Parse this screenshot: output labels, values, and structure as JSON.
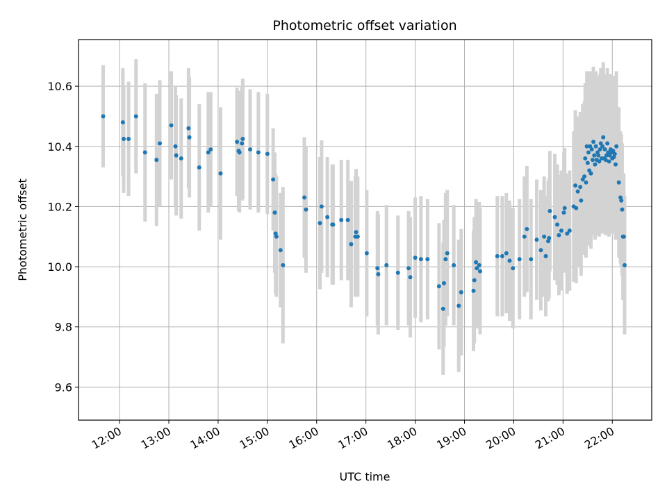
{
  "chart_data": {
    "type": "scatter",
    "title": "Photometric offset variation",
    "xlabel": "UTC time",
    "ylabel": "Photometric offset",
    "x_ticks": [
      "12:00",
      "13:00",
      "14:00",
      "15:00",
      "16:00",
      "17:00",
      "18:00",
      "19:00",
      "20:00",
      "21:00",
      "22:00"
    ],
    "y_ticks": [
      "9.6",
      "9.8",
      "10.0",
      "10.2",
      "10.4",
      "10.6"
    ],
    "xlim": [
      "11:10",
      "22:48"
    ],
    "ylim": [
      9.49,
      10.755
    ],
    "grid": true,
    "marker_color": "#1f77b4",
    "errorbar_color": "#d3d3d3",
    "points_format": [
      "time",
      "offset",
      "error"
    ],
    "points": [
      [
        "11:40",
        10.5,
        0.17
      ],
      [
        "12:04",
        10.48,
        0.18
      ],
      [
        "12:05",
        10.425,
        0.18
      ],
      [
        "12:11",
        10.425,
        0.19
      ],
      [
        "12:20",
        10.5,
        0.19
      ],
      [
        "12:31",
        10.38,
        0.23
      ],
      [
        "12:45",
        10.355,
        0.22
      ],
      [
        "12:49",
        10.41,
        0.21
      ],
      [
        "13:03",
        10.47,
        0.18
      ],
      [
        "13:08",
        10.4,
        0.2
      ],
      [
        "13:09",
        10.37,
        0.2
      ],
      [
        "13:15",
        10.36,
        0.2
      ],
      [
        "13:24",
        10.46,
        0.2
      ],
      [
        "13:25",
        10.43,
        0.2
      ],
      [
        "13:37",
        10.33,
        0.21
      ],
      [
        "13:48",
        10.38,
        0.2
      ],
      [
        "13:51",
        10.39,
        0.19
      ],
      [
        "14:03",
        10.31,
        0.22
      ],
      [
        "14:23",
        10.415,
        0.18
      ],
      [
        "14:25",
        10.385,
        0.2
      ],
      [
        "14:26",
        10.38,
        0.2
      ],
      [
        "14:29",
        10.41,
        0.19
      ],
      [
        "14:30",
        10.425,
        0.2
      ],
      [
        "14:39",
        10.39,
        0.2
      ],
      [
        "14:49",
        10.38,
        0.2
      ],
      [
        "15:00",
        10.375,
        0.2
      ],
      [
        "15:07",
        10.29,
        0.17
      ],
      [
        "15:09",
        10.18,
        0.2
      ],
      [
        "15:10",
        10.11,
        0.2
      ],
      [
        "15:11",
        10.1,
        0.2
      ],
      [
        "15:16",
        10.055,
        0.19
      ],
      [
        "15:19",
        10.005,
        0.26
      ],
      [
        "15:45",
        10.23,
        0.2
      ],
      [
        "15:47",
        10.19,
        0.21
      ],
      [
        "16:04",
        10.145,
        0.22
      ],
      [
        "16:06",
        10.2,
        0.22
      ],
      [
        "16:13",
        10.165,
        0.2
      ],
      [
        "16:19",
        10.14,
        0.2
      ],
      [
        "16:20",
        10.14,
        0.2
      ],
      [
        "16:30",
        10.155,
        0.2
      ],
      [
        "16:38",
        10.155,
        0.2
      ],
      [
        "16:42",
        10.075,
        0.21
      ],
      [
        "16:47",
        10.1,
        0.2
      ],
      [
        "16:48",
        10.115,
        0.21
      ],
      [
        "16:50",
        10.1,
        0.2
      ],
      [
        "17:01",
        10.045,
        0.21
      ],
      [
        "17:14",
        9.995,
        0.19
      ],
      [
        "17:15",
        9.975,
        0.2
      ],
      [
        "17:25",
        10.005,
        0.2
      ],
      [
        "17:39",
        9.98,
        0.19
      ],
      [
        "17:52",
        9.995,
        0.19
      ],
      [
        "17:54",
        9.965,
        0.2
      ],
      [
        "18:00",
        10.03,
        0.2
      ],
      [
        "18:07",
        10.025,
        0.21
      ],
      [
        "18:15",
        10.025,
        0.2
      ],
      [
        "18:29",
        9.935,
        0.21
      ],
      [
        "18:34",
        9.86,
        0.22
      ],
      [
        "18:35",
        9.945,
        0.21
      ],
      [
        "18:37",
        10.025,
        0.22
      ],
      [
        "18:39",
        10.045,
        0.21
      ],
      [
        "18:47",
        10.005,
        0.2
      ],
      [
        "18:53",
        9.87,
        0.22
      ],
      [
        "18:56",
        9.915,
        0.21
      ],
      [
        "19:11",
        9.92,
        0.2
      ],
      [
        "19:12",
        9.955,
        0.21
      ],
      [
        "19:14",
        10.015,
        0.21
      ],
      [
        "19:15",
        9.995,
        0.2
      ],
      [
        "19:18",
        10.005,
        0.21
      ],
      [
        "19:19",
        9.985,
        0.21
      ],
      [
        "19:40",
        10.035,
        0.2
      ],
      [
        "19:46",
        10.035,
        0.2
      ],
      [
        "19:51",
        10.045,
        0.2
      ],
      [
        "19:55",
        10.02,
        0.2
      ],
      [
        "19:59",
        9.995,
        0.2
      ],
      [
        "20:07",
        10.025,
        0.2
      ],
      [
        "20:13",
        10.1,
        0.2
      ],
      [
        "20:16",
        10.125,
        0.21
      ],
      [
        "20:21",
        10.025,
        0.2
      ],
      [
        "20:28",
        10.09,
        0.2
      ],
      [
        "20:33",
        10.055,
        0.2
      ],
      [
        "20:37",
        10.1,
        0.2
      ],
      [
        "20:39",
        10.035,
        0.2
      ],
      [
        "20:42",
        10.085,
        0.2
      ],
      [
        "20:43",
        10.095,
        0.2
      ],
      [
        "20:44",
        10.185,
        0.2
      ],
      [
        "20:50",
        10.165,
        0.21
      ],
      [
        "20:53",
        10.14,
        0.2
      ],
      [
        "20:55",
        10.105,
        0.2
      ],
      [
        "20:58",
        10.12,
        0.2
      ],
      [
        "21:01",
        10.18,
        0.2
      ],
      [
        "21:02",
        10.195,
        0.2
      ],
      [
        "21:05",
        10.11,
        0.2
      ],
      [
        "21:08",
        10.12,
        0.2
      ],
      [
        "21:13",
        10.2,
        0.25
      ],
      [
        "21:15",
        10.27,
        0.25
      ],
      [
        "21:16",
        10.195,
        0.25
      ],
      [
        "21:18",
        10.25,
        0.25
      ],
      [
        "21:21",
        10.265,
        0.25
      ],
      [
        "21:22",
        10.22,
        0.25
      ],
      [
        "21:24",
        10.29,
        0.25
      ],
      [
        "21:26",
        10.3,
        0.25
      ],
      [
        "21:27",
        10.36,
        0.25
      ],
      [
        "21:28",
        10.28,
        0.25
      ],
      [
        "21:29",
        10.4,
        0.25
      ],
      [
        "21:30",
        10.345,
        0.25
      ],
      [
        "21:31",
        10.38,
        0.25
      ],
      [
        "21:32",
        10.32,
        0.25
      ],
      [
        "21:33",
        10.4,
        0.25
      ],
      [
        "21:34",
        10.31,
        0.25
      ],
      [
        "21:35",
        10.39,
        0.25
      ],
      [
        "21:36",
        10.355,
        0.25
      ],
      [
        "21:37",
        10.415,
        0.25
      ],
      [
        "21:38",
        10.37,
        0.25
      ],
      [
        "21:39",
        10.34,
        0.25
      ],
      [
        "21:40",
        10.4,
        0.25
      ],
      [
        "21:41",
        10.355,
        0.25
      ],
      [
        "21:42",
        10.38,
        0.25
      ],
      [
        "21:43",
        10.37,
        0.25
      ],
      [
        "21:44",
        10.35,
        0.25
      ],
      [
        "21:45",
        10.39,
        0.25
      ],
      [
        "21:46",
        10.41,
        0.25
      ],
      [
        "21:47",
        10.36,
        0.25
      ],
      [
        "21:48",
        10.4,
        0.25
      ],
      [
        "21:49",
        10.43,
        0.25
      ],
      [
        "21:50",
        10.36,
        0.25
      ],
      [
        "21:51",
        10.39,
        0.25
      ],
      [
        "21:52",
        10.355,
        0.25
      ],
      [
        "21:53",
        10.37,
        0.25
      ],
      [
        "21:54",
        10.41,
        0.25
      ],
      [
        "21:55",
        10.38,
        0.25
      ],
      [
        "21:56",
        10.35,
        0.25
      ],
      [
        "21:57",
        10.37,
        0.25
      ],
      [
        "21:58",
        10.39,
        0.25
      ],
      [
        "21:59",
        10.38,
        0.25
      ],
      [
        "22:00",
        10.36,
        0.25
      ],
      [
        "22:01",
        10.385,
        0.25
      ],
      [
        "22:02",
        10.365,
        0.25
      ],
      [
        "22:03",
        10.375,
        0.25
      ],
      [
        "22:04",
        10.34,
        0.25
      ],
      [
        "22:05",
        10.4,
        0.25
      ],
      [
        "22:08",
        10.28,
        0.25
      ],
      [
        "22:10",
        10.23,
        0.22
      ],
      [
        "22:11",
        10.22,
        0.22
      ],
      [
        "22:12",
        10.19,
        0.22
      ],
      [
        "22:13",
        10.1,
        0.21
      ],
      [
        "22:14",
        10.1,
        0.21
      ],
      [
        "22:15",
        10.005,
        0.23
      ]
    ]
  }
}
